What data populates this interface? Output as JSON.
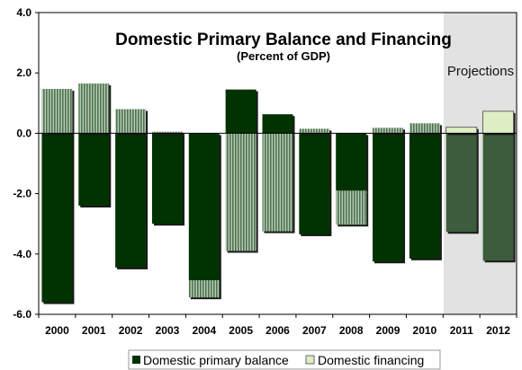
{
  "chart_data": {
    "type": "bar",
    "stacked": true,
    "title": "Domestic Primary Balance and Financing",
    "subtitle": "(Percent of GDP)",
    "annotation": "Projections",
    "projection_start_category": "2011",
    "categories": [
      "2000",
      "2001",
      "2002",
      "2003",
      "2004",
      "2005",
      "2006",
      "2007",
      "2008",
      "2009",
      "2010",
      "2011",
      "2012"
    ],
    "ylim": [
      -6.0,
      4.0
    ],
    "yticks": [
      "4.0",
      "2.0",
      "0.0",
      "-2.0",
      "-4.0",
      "-6.0"
    ],
    "ytick_values": [
      4,
      2,
      0,
      -2,
      -4,
      -6
    ],
    "grid": false,
    "legend_position": "bottom",
    "series": [
      {
        "name": "Domestic primary balance",
        "color": "#003300",
        "projection_color": "#3c5c3c",
        "values": [
          -5.6,
          -2.4,
          -4.45,
          -3.0,
          -4.87,
          1.45,
          0.63,
          -3.35,
          -1.9,
          -4.25,
          -4.15,
          -3.27,
          -4.22
        ]
      },
      {
        "name": "Domestic financing",
        "color": "#779977",
        "pattern": "vertical-stripes",
        "projection_color": "#e0eec6",
        "values": [
          1.47,
          1.65,
          0.8,
          0.05,
          -0.57,
          -3.9,
          -3.25,
          0.15,
          -1.13,
          0.18,
          0.33,
          0.2,
          0.73
        ]
      }
    ]
  }
}
